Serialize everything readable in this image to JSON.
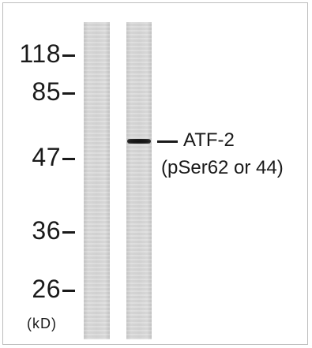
{
  "ladder": {
    "markers": [
      {
        "label": "118",
        "kda": 118
      },
      {
        "label": "85",
        "kda": 85
      },
      {
        "label": "47",
        "kda": 47
      },
      {
        "label": "36",
        "kda": 36
      },
      {
        "label": "26",
        "kda": 26
      }
    ],
    "unit": "(kD)"
  },
  "band_annotation": {
    "line1": "ATF-2",
    "line2": "(pSer62 or 44)"
  }
}
